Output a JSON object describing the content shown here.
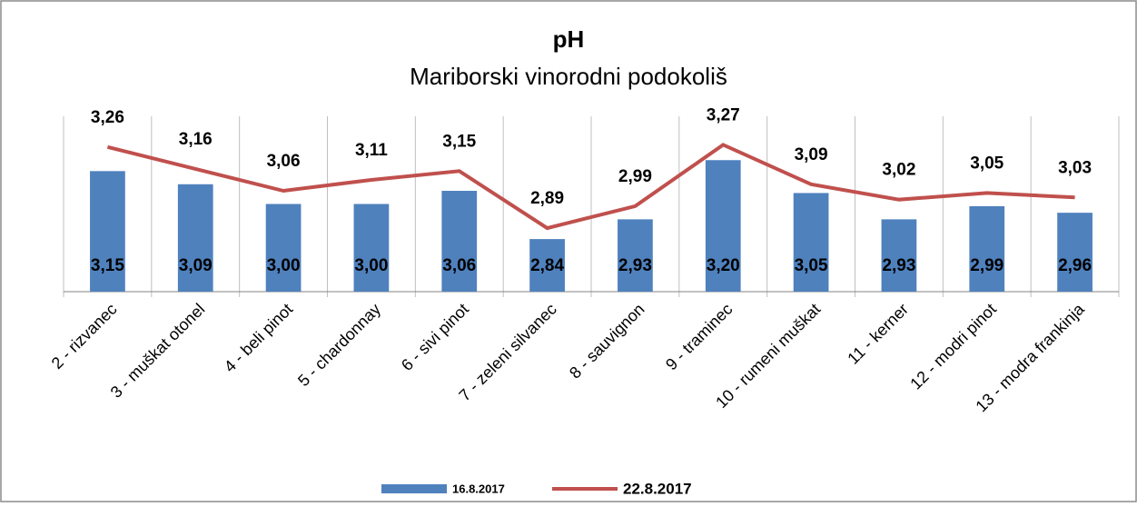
{
  "chart_data": {
    "type": "bar_line",
    "title": "pH",
    "subtitle": "Mariborski vinorodni podokoliš",
    "categories": [
      "2 - rizvanec",
      "3 - muškat otonel",
      "4 - beli pinot",
      "5 - chardonnay",
      "6 - sivi pinot",
      "7 - zeleni silvanec",
      "8 - sauvignon",
      "9 - traminec",
      "10 - rumeni muškat",
      "11 - kerner",
      "12 - modri pinot",
      "13 - modra frankinja"
    ],
    "series": [
      {
        "name": "16.8.2017",
        "type": "bar",
        "color": "#4f81bd",
        "values": [
          3.15,
          3.09,
          3.0,
          3.0,
          3.06,
          2.84,
          2.93,
          3.2,
          3.05,
          2.93,
          2.99,
          2.96
        ],
        "value_labels": [
          "3,15",
          "3,09",
          "3,00",
          "3,00",
          "3,06",
          "2,84",
          "2,93",
          "3,20",
          "3,05",
          "2,93",
          "2,99",
          "2,96"
        ]
      },
      {
        "name": "22.8.2017",
        "type": "line",
        "color": "#c0504d",
        "values": [
          3.26,
          3.16,
          3.06,
          3.11,
          3.15,
          2.89,
          2.99,
          3.27,
          3.09,
          3.02,
          3.05,
          3.03
        ],
        "value_labels": [
          "3,26",
          "3,16",
          "3,06",
          "3,11",
          "3,15",
          "2,89",
          "2,99",
          "3,27",
          "3,09",
          "3,02",
          "3,05",
          "3,03"
        ]
      }
    ],
    "ylim": [
      2.6,
      3.4
    ],
    "legend": "bottom"
  }
}
